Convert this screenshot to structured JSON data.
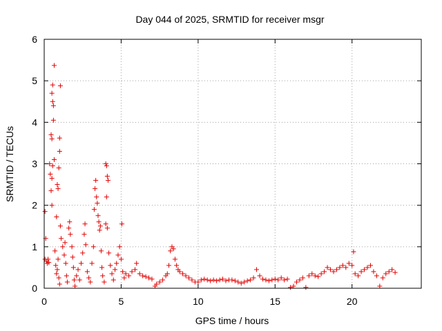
{
  "chart_data": {
    "type": "scatter",
    "title": "Day 044 of 2025, SRMTID for receiver msgr",
    "xlabel": "GPS time / hours",
    "ylabel": "SRMTID / TECUs",
    "xlim": [
      0,
      24.5
    ],
    "ylim": [
      0,
      6
    ],
    "xticks": [
      0,
      5,
      10,
      15,
      20
    ],
    "yticks": [
      0,
      1,
      2,
      3,
      4,
      5,
      6
    ],
    "grid": true,
    "marker": "plus",
    "series_color": "#e00000",
    "series": [
      {
        "name": "SRMTID",
        "points": [
          [
            0.05,
            1.85
          ],
          [
            0.1,
            1.2
          ],
          [
            0.05,
            0.7
          ],
          [
            0.15,
            0.65
          ],
          [
            0.2,
            0.6
          ],
          [
            0.25,
            0.7
          ],
          [
            0.3,
            0.62
          ],
          [
            0.35,
            3.0
          ],
          [
            0.4,
            2.75
          ],
          [
            0.45,
            3.7
          ],
          [
            0.5,
            3.6
          ],
          [
            0.55,
            4.9
          ],
          [
            0.5,
            4.7
          ],
          [
            0.55,
            4.5
          ],
          [
            0.6,
            4.4
          ],
          [
            0.6,
            4.05
          ],
          [
            0.65,
            3.1
          ],
          [
            0.55,
            2.95
          ],
          [
            0.5,
            2.65
          ],
          [
            0.45,
            2.35
          ],
          [
            0.5,
            2.0
          ],
          [
            0.65,
            5.37
          ],
          [
            0.7,
            0.9
          ],
          [
            0.75,
            0.55
          ],
          [
            0.8,
            0.35
          ],
          [
            0.85,
            0.45
          ],
          [
            0.9,
            0.7
          ],
          [
            0.95,
            0.25
          ],
          [
            1.0,
            0.1
          ],
          [
            1.0,
            3.62
          ],
          [
            1.0,
            3.3
          ],
          [
            1.05,
            4.88
          ],
          [
            0.95,
            2.9
          ],
          [
            0.85,
            2.5
          ],
          [
            0.9,
            2.4
          ],
          [
            0.8,
            1.72
          ],
          [
            1.05,
            1.5
          ],
          [
            1.1,
            1.2
          ],
          [
            1.2,
            1.0
          ],
          [
            1.3,
            0.8
          ],
          [
            1.35,
            1.1
          ],
          [
            1.4,
            0.6
          ],
          [
            1.45,
            0.3
          ],
          [
            1.5,
            0.15
          ],
          [
            1.6,
            1.45
          ],
          [
            1.65,
            1.6
          ],
          [
            1.7,
            1.3
          ],
          [
            1.8,
            1.0
          ],
          [
            1.85,
            0.75
          ],
          [
            1.9,
            0.5
          ],
          [
            1.95,
            0.2
          ],
          [
            2.0,
            0.05
          ],
          [
            2.1,
            0.3
          ],
          [
            2.2,
            0.45
          ],
          [
            2.3,
            0.2
          ],
          [
            2.4,
            0.6
          ],
          [
            2.5,
            0.85
          ],
          [
            2.6,
            1.3
          ],
          [
            2.65,
            1.55
          ],
          [
            2.7,
            1.05
          ],
          [
            2.8,
            0.4
          ],
          [
            2.9,
            0.25
          ],
          [
            3.0,
            0.15
          ],
          [
            3.1,
            0.6
          ],
          [
            3.2,
            1.0
          ],
          [
            3.25,
            1.9
          ],
          [
            3.3,
            2.4
          ],
          [
            3.35,
            2.6
          ],
          [
            3.4,
            2.2
          ],
          [
            3.45,
            2.05
          ],
          [
            3.5,
            1.75
          ],
          [
            3.55,
            1.6
          ],
          [
            3.6,
            1.4
          ],
          [
            3.65,
            1.5
          ],
          [
            3.7,
            0.9
          ],
          [
            3.75,
            0.5
          ],
          [
            3.8,
            0.3
          ],
          [
            3.9,
            0.15
          ],
          [
            4.0,
            3.0
          ],
          [
            4.05,
            2.95
          ],
          [
            4.1,
            2.7
          ],
          [
            4.15,
            2.6
          ],
          [
            4.05,
            2.2
          ],
          [
            4.0,
            1.55
          ],
          [
            4.1,
            1.45
          ],
          [
            4.2,
            0.85
          ],
          [
            4.3,
            0.55
          ],
          [
            4.4,
            0.35
          ],
          [
            4.5,
            0.2
          ],
          [
            4.6,
            0.45
          ],
          [
            4.7,
            0.6
          ],
          [
            4.8,
            0.8
          ],
          [
            4.9,
            1.0
          ],
          [
            5.0,
            0.7
          ],
          [
            5.05,
            1.55
          ],
          [
            5.1,
            0.4
          ],
          [
            5.2,
            0.25
          ],
          [
            5.3,
            0.35
          ],
          [
            5.5,
            0.3
          ],
          [
            5.7,
            0.4
          ],
          [
            5.9,
            0.45
          ],
          [
            6.0,
            0.6
          ],
          [
            6.2,
            0.35
          ],
          [
            6.4,
            0.3
          ],
          [
            6.6,
            0.28
          ],
          [
            6.8,
            0.25
          ],
          [
            7.0,
            0.22
          ],
          [
            7.2,
            0.05
          ],
          [
            7.3,
            0.1
          ],
          [
            7.5,
            0.15
          ],
          [
            7.7,
            0.2
          ],
          [
            7.9,
            0.3
          ],
          [
            8.0,
            0.35
          ],
          [
            8.1,
            0.55
          ],
          [
            8.2,
            0.9
          ],
          [
            8.3,
            1.0
          ],
          [
            8.4,
            0.95
          ],
          [
            8.5,
            0.7
          ],
          [
            8.6,
            0.55
          ],
          [
            8.7,
            0.45
          ],
          [
            8.8,
            0.4
          ],
          [
            9.0,
            0.35
          ],
          [
            9.2,
            0.3
          ],
          [
            9.4,
            0.25
          ],
          [
            9.6,
            0.2
          ],
          [
            9.8,
            0.15
          ],
          [
            10.0,
            0.15
          ],
          [
            10.2,
            0.2
          ],
          [
            10.4,
            0.22
          ],
          [
            10.6,
            0.2
          ],
          [
            10.8,
            0.18
          ],
          [
            11.0,
            0.2
          ],
          [
            11.2,
            0.18
          ],
          [
            11.4,
            0.2
          ],
          [
            11.6,
            0.22
          ],
          [
            11.8,
            0.18
          ],
          [
            12.0,
            0.2
          ],
          [
            12.2,
            0.2
          ],
          [
            12.4,
            0.18
          ],
          [
            12.6,
            0.15
          ],
          [
            12.8,
            0.12
          ],
          [
            13.0,
            0.15
          ],
          [
            13.2,
            0.18
          ],
          [
            13.4,
            0.2
          ],
          [
            13.6,
            0.25
          ],
          [
            13.8,
            0.45
          ],
          [
            14.0,
            0.3
          ],
          [
            14.2,
            0.22
          ],
          [
            14.4,
            0.2
          ],
          [
            14.6,
            0.18
          ],
          [
            14.8,
            0.2
          ],
          [
            15.0,
            0.22
          ],
          [
            15.2,
            0.2
          ],
          [
            15.4,
            0.25
          ],
          [
            15.6,
            0.2
          ],
          [
            15.8,
            0.22
          ],
          [
            16.0,
            0.02
          ],
          [
            16.2,
            0.05
          ],
          [
            16.4,
            0.15
          ],
          [
            16.6,
            0.2
          ],
          [
            16.8,
            0.25
          ],
          [
            17.0,
            0.02
          ],
          [
            17.2,
            0.3
          ],
          [
            17.4,
            0.35
          ],
          [
            17.6,
            0.3
          ],
          [
            17.8,
            0.28
          ],
          [
            18.0,
            0.35
          ],
          [
            18.2,
            0.4
          ],
          [
            18.4,
            0.5
          ],
          [
            18.6,
            0.45
          ],
          [
            18.8,
            0.4
          ],
          [
            19.0,
            0.45
          ],
          [
            19.2,
            0.5
          ],
          [
            19.4,
            0.55
          ],
          [
            19.6,
            0.5
          ],
          [
            19.8,
            0.6
          ],
          [
            20.0,
            0.55
          ],
          [
            20.1,
            0.88
          ],
          [
            20.2,
            0.35
          ],
          [
            20.4,
            0.3
          ],
          [
            20.6,
            0.4
          ],
          [
            20.8,
            0.45
          ],
          [
            21.0,
            0.5
          ],
          [
            21.2,
            0.55
          ],
          [
            21.4,
            0.4
          ],
          [
            21.6,
            0.3
          ],
          [
            21.8,
            0.05
          ],
          [
            22.0,
            0.25
          ],
          [
            22.2,
            0.35
          ],
          [
            22.4,
            0.4
          ],
          [
            22.6,
            0.45
          ],
          [
            22.8,
            0.38
          ]
        ]
      }
    ]
  }
}
